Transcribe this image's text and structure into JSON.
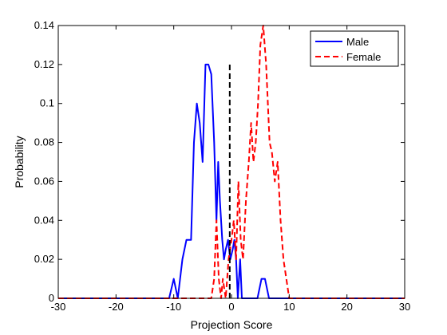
{
  "chart_data": {
    "type": "line",
    "xlabel": "Projection Score",
    "ylabel": "Probability",
    "xlim": [
      -30,
      30
    ],
    "ylim": [
      0,
      0.14
    ],
    "xticks": [
      -30,
      -20,
      -10,
      0,
      10,
      20,
      30
    ],
    "yticks": [
      0,
      0.02,
      0.04,
      0.06,
      0.08,
      0.1,
      0.12,
      0.14
    ],
    "legend_position": "top-right",
    "grid": false,
    "threshold": {
      "x": -0.3,
      "y_range": [
        0,
        0.12
      ],
      "color": "#000000",
      "style": "dashed"
    },
    "series": [
      {
        "name": "Male",
        "color": "#0000ff",
        "style": "solid",
        "x": [
          -30,
          -10.8,
          -10,
          -9.3,
          -8.5,
          -7.8,
          -7,
          -6.5,
          -6,
          -5.5,
          -5,
          -4.5,
          -4,
          -3.5,
          -3,
          -2.6,
          -2.3,
          -2,
          -1.6,
          -1.3,
          -1,
          -0.6,
          -0.2,
          0.2,
          0.5,
          0.8,
          1.1,
          1.5,
          1.8,
          2.2,
          4.5,
          5.2,
          5.8,
          6.5,
          30
        ],
        "y": [
          0,
          0,
          0.01,
          0,
          0.02,
          0.03,
          0.03,
          0.08,
          0.1,
          0.09,
          0.07,
          0.12,
          0.12,
          0.115,
          0.08,
          0.04,
          0.07,
          0.05,
          0.03,
          0.02,
          0.025,
          0.03,
          0.02,
          0.025,
          0.03,
          0.02,
          0,
          0.02,
          0,
          0,
          0,
          0.01,
          0.01,
          0,
          0
        ]
      },
      {
        "name": "Female",
        "color": "#ff0000",
        "style": "dashed",
        "x": [
          -30,
          -3.5,
          -3,
          -2.6,
          -2.2,
          -1.8,
          -1.5,
          -1,
          -0.5,
          0,
          0.4,
          0.8,
          1.2,
          1.6,
          2,
          2.5,
          3,
          3.4,
          3.8,
          4.2,
          4.6,
          5,
          5.5,
          6,
          6.6,
          7,
          7.5,
          8,
          8.5,
          9,
          9.5,
          10,
          30
        ],
        "y": [
          0,
          0,
          0.01,
          0.04,
          0.01,
          0,
          0.01,
          0,
          0.02,
          0.03,
          0.04,
          0.02,
          0.06,
          0.03,
          0.02,
          0.05,
          0.07,
          0.09,
          0.07,
          0.08,
          0.1,
          0.13,
          0.14,
          0.12,
          0.08,
          0.075,
          0.06,
          0.07,
          0.04,
          0.02,
          0.01,
          0,
          0
        ]
      }
    ]
  }
}
